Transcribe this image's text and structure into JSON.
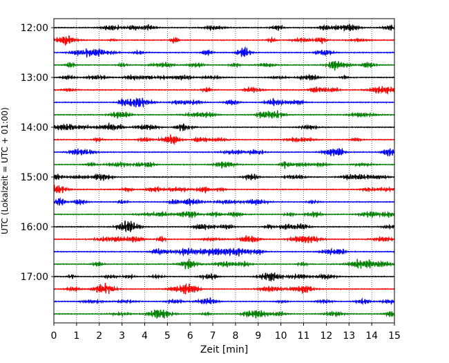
{
  "chart_data": {
    "type": "line",
    "title": "",
    "xlabel": "Zeit  [min]",
    "ylabel": "UTC (Lokalzeit = UTC + 01:00)",
    "xlim": [
      0,
      15
    ],
    "x_ticks": [
      "0",
      "1",
      "2",
      "3",
      "4",
      "5",
      "6",
      "7",
      "8",
      "9",
      "10",
      "11",
      "12",
      "13",
      "14",
      "15"
    ],
    "y_ticks": [
      "12:00",
      "13:00",
      "14:00",
      "15:00",
      "16:00",
      "17:00"
    ],
    "trace_start": "12:00",
    "trace_interval_min": 15,
    "trace_count": 24,
    "grid": "vertical dotted at each minute",
    "colors": [
      "#000000",
      "#ff0000",
      "#0000ff",
      "#008000"
    ]
  }
}
